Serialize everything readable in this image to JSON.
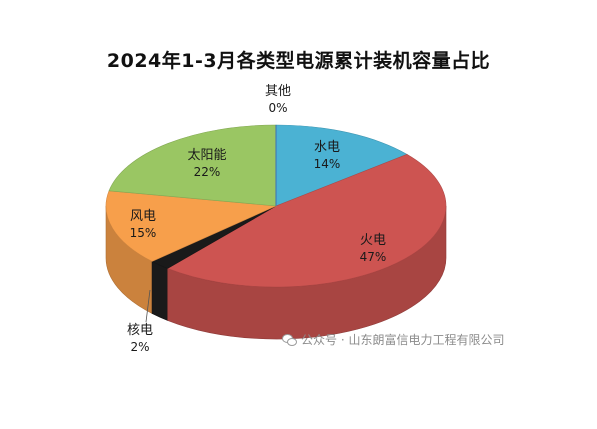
{
  "chart_data": {
    "type": "pie",
    "title": "2024年1-3月各类型电源累计装机容量占比",
    "slices": [
      {
        "name": "水电",
        "label": "14%",
        "value": 14,
        "color": "#4bb2d3"
      },
      {
        "name": "火电",
        "label": "47%",
        "value": 47,
        "color": "#cd5451"
      },
      {
        "name": "核电",
        "label": "2%",
        "value": 2,
        "color": "#1a1a1a"
      },
      {
        "name": "风电",
        "label": "15%",
        "value": 15,
        "color": "#f79f4b"
      },
      {
        "name": "太阳能",
        "label": "22%",
        "value": 22,
        "color": "#9ac663"
      },
      {
        "name": "其他",
        "label": "0%",
        "value": 0,
        "color": "#3d6fb0"
      }
    ]
  },
  "watermark": {
    "icon": "wechat-icon",
    "text": "公众号 · 山东朗富信电力工程有限公司"
  }
}
